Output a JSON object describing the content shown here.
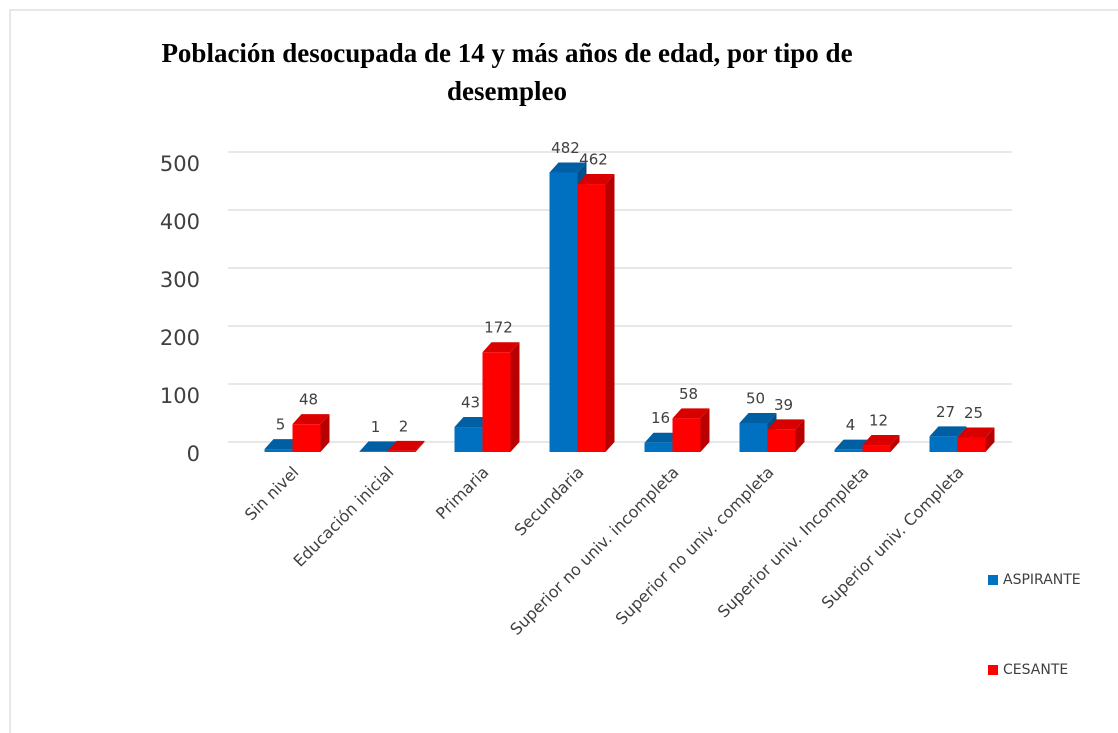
{
  "chart_data": {
    "type": "bar3d",
    "title": "Población desocupada de 14 y más años de edad, por tipo de desempleo",
    "categories": [
      "Sin nivel",
      "Educación inicial",
      "Primaria",
      "Secundaria",
      "Superior no univ. incompleta",
      "Superior no univ. completa",
      "Superior univ. Incompleta",
      "Superior univ. Completa"
    ],
    "series": [
      {
        "name": "ASPIRANTE",
        "color": "#0070c0",
        "values": [
          5,
          1,
          43,
          482,
          16,
          50,
          4,
          27
        ]
      },
      {
        "name": "CESANTE",
        "color": "#ff0000",
        "values": [
          48,
          2,
          172,
          462,
          58,
          39,
          12,
          25
        ]
      }
    ],
    "ylim": [
      0,
      500
    ],
    "yticks": [
      0,
      100,
      200,
      300,
      400,
      500
    ],
    "grid": true,
    "legend": "right"
  }
}
